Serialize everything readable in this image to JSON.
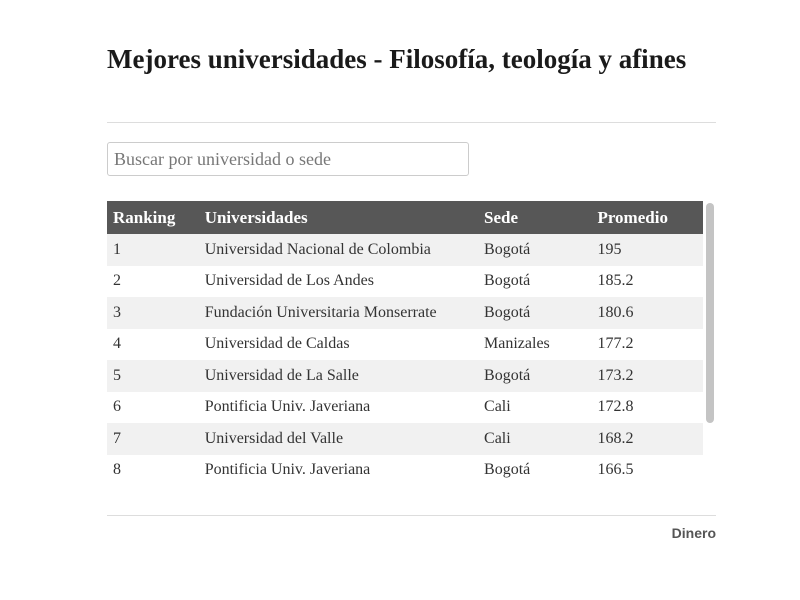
{
  "header": {
    "title": "Mejores universidades - Filosofía, teología y afines"
  },
  "search": {
    "placeholder": "Buscar por universidad o sede"
  },
  "table": {
    "columns": [
      "Ranking",
      "Universidades",
      "Sede",
      "Promedio"
    ],
    "rows": [
      [
        "1",
        "Universidad Nacional de Colombia",
        "Bogotá",
        "195"
      ],
      [
        "2",
        "Universidad de Los Andes",
        "Bogotá",
        "185.2"
      ],
      [
        "3",
        "Fundación Universitaria Monserrate",
        "Bogotá",
        "180.6"
      ],
      [
        "4",
        "Universidad de Caldas",
        "Manizales",
        "177.2"
      ],
      [
        "5",
        "Universidad de La Salle",
        "Bogotá",
        "173.2"
      ],
      [
        "6",
        "Pontificia Univ. Javeriana",
        "Cali",
        "172.8"
      ],
      [
        "7",
        "Universidad del Valle",
        "Cali",
        "168.2"
      ],
      [
        "8",
        "Pontificia Univ. Javeriana",
        "Bogotá",
        "166.5"
      ]
    ]
  },
  "footer": {
    "source": "Dinero"
  }
}
